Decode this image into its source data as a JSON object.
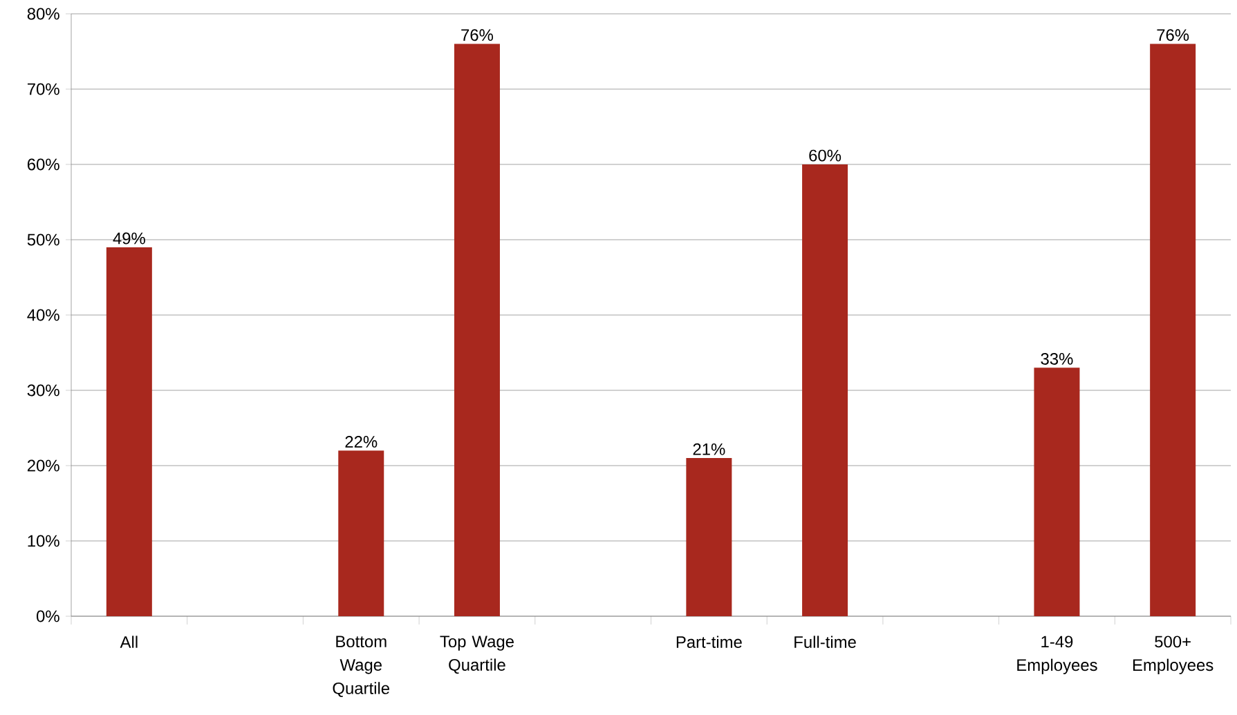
{
  "chart_data": {
    "type": "bar",
    "categories": [
      "All",
      null,
      "Bottom Wage Quartile",
      "Top Wage Quartile",
      null,
      "Part-time",
      "Full-time",
      null,
      "1-49 Employees",
      "500+ Employees"
    ],
    "values": [
      49,
      null,
      22,
      76,
      null,
      21,
      60,
      null,
      33,
      76
    ],
    "value_labels": [
      "49%",
      null,
      "22%",
      "76%",
      null,
      "21%",
      "60%",
      null,
      "33%",
      "76%"
    ],
    "color": "#a8281e",
    "ylim": [
      0,
      80
    ],
    "yticks": [
      {
        "value": 0,
        "label": "0%"
      },
      {
        "value": 10,
        "label": "10%"
      },
      {
        "value": 20,
        "label": "20%"
      },
      {
        "value": 30,
        "label": "30%"
      },
      {
        "value": 40,
        "label": "40%"
      },
      {
        "value": 50,
        "label": "50%"
      },
      {
        "value": 60,
        "label": "60%"
      },
      {
        "value": 70,
        "label": "70%"
      },
      {
        "value": 80,
        "label": "80%"
      }
    ],
    "grid": "y"
  }
}
